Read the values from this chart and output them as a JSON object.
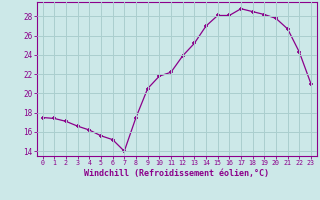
{
  "x": [
    0,
    1,
    2,
    3,
    4,
    5,
    6,
    7,
    8,
    9,
    10,
    11,
    12,
    13,
    14,
    15,
    16,
    17,
    18,
    19,
    20,
    21,
    22,
    23
  ],
  "y": [
    17.5,
    17.4,
    17.1,
    16.6,
    16.2,
    15.6,
    15.2,
    14.0,
    17.5,
    20.5,
    21.8,
    22.2,
    23.9,
    25.2,
    27.0,
    28.1,
    28.1,
    28.8,
    28.5,
    28.2,
    27.8,
    26.7,
    24.3,
    21.0
  ],
  "line_color": "#8B008B",
  "marker": "+",
  "bg_color": "#cce8e8",
  "grid_color": "#aacece",
  "xlabel": "Windchill (Refroidissement éolien,°C)",
  "xlim": [
    -0.5,
    23.5
  ],
  "ylim": [
    13.5,
    29.5
  ],
  "yticks": [
    14,
    16,
    18,
    20,
    22,
    24,
    26,
    28
  ],
  "xticks": [
    0,
    1,
    2,
    3,
    4,
    5,
    6,
    7,
    8,
    9,
    10,
    11,
    12,
    13,
    14,
    15,
    16,
    17,
    18,
    19,
    20,
    21,
    22,
    23
  ],
  "tick_color": "#8B008B",
  "label_color": "#8B008B"
}
